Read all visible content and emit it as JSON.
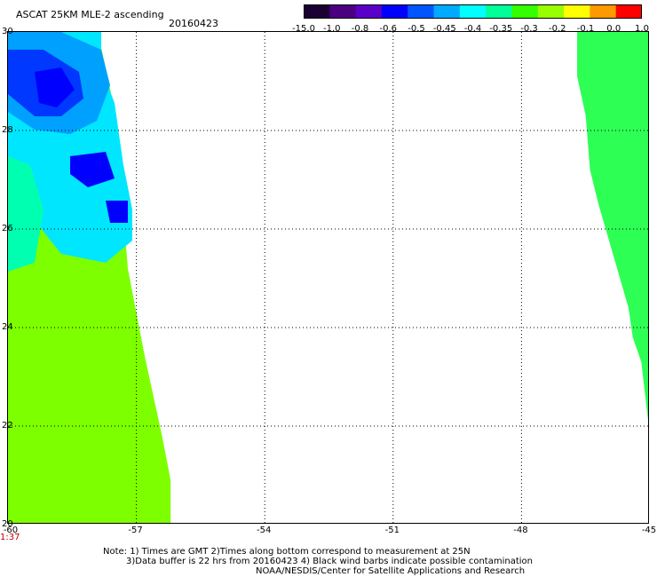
{
  "header": {
    "title": "ASCAT 25KM MLE-2 ascending",
    "date": "20160423"
  },
  "colorbar": {
    "labels": [
      "-15.0",
      "-1.0",
      "-0.8",
      "-0.6",
      "-0.5",
      "-0.45",
      "-0.4",
      "-0.35",
      "-0.3",
      "-0.2",
      "-0.1",
      "0.0",
      "1.0"
    ],
    "colors": [
      "#1a0033",
      "#4b0082",
      "#5a00c8",
      "#0000ff",
      "#0055ff",
      "#00aaff",
      "#00ffff",
      "#00ff99",
      "#33ff00",
      "#99ff00",
      "#ffff00",
      "#ff9900",
      "#ff0000"
    ]
  },
  "map": {
    "lon_labels": [
      "-60",
      "-57",
      "-54",
      "-51",
      "-48",
      "-45"
    ],
    "lat_labels": [
      "30",
      "28",
      "26",
      "24",
      "22",
      "20"
    ],
    "lon_range": [
      -60,
      -45
    ],
    "lat_range": [
      20,
      30
    ],
    "time_label": "1:37",
    "left_swath_color": "#7dff00",
    "right_swath_color": "#2dff55",
    "blue_patch_colors": [
      "#0000ff",
      "#0038ff",
      "#00a0ff",
      "#00e6ff",
      "#00ffb0"
    ]
  },
  "footer": {
    "line1": "Note: 1) Times are GMT 2)Times along bottom correspond to measurement at 25N",
    "line2": "3)Data buffer is 22 hrs from 20160423 4) Black wind barbs indicate possible contamination",
    "line3": "NOAA/NESDIS/Center for Satellite Applications and Research"
  }
}
